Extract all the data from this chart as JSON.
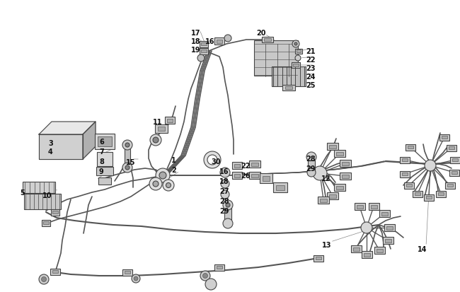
{
  "background_color": "#ffffff",
  "line_color": "#444444",
  "component_color": "#555555",
  "label_color": "#111111",
  "fig_width": 6.5,
  "fig_height": 4.13,
  "dpi": 100,
  "imgw": 650,
  "imgh": 413,
  "wire_lw": 1.2,
  "wire_color": "#555555",
  "comp_lw": 0.8,
  "comp_fc": "#d8d8d8",
  "comp_ec": "#444444",
  "label_fs": 7.0,
  "labels": [
    [
      "1",
      242,
      222
    ],
    [
      "2",
      242,
      236
    ],
    [
      "3",
      68,
      198
    ],
    [
      "4",
      68,
      210
    ],
    [
      "5",
      28,
      268
    ],
    [
      "6",
      140,
      196
    ],
    [
      "7",
      140,
      210
    ],
    [
      "8",
      140,
      224
    ],
    [
      "9",
      140,
      238
    ],
    [
      "10",
      60,
      272
    ],
    [
      "11",
      216,
      168
    ],
    [
      "12",
      454,
      248
    ],
    [
      "13",
      455,
      342
    ],
    [
      "14",
      590,
      348
    ],
    [
      "15",
      178,
      225
    ],
    [
      "16",
      290,
      54
    ],
    [
      "17",
      270,
      42
    ],
    [
      "18",
      270,
      54
    ],
    [
      "19",
      270,
      66
    ],
    [
      "20",
      362,
      42
    ],
    [
      "21",
      432,
      68
    ],
    [
      "22",
      432,
      80
    ],
    [
      "23",
      432,
      92
    ],
    [
      "24",
      432,
      104
    ],
    [
      "25",
      432,
      116
    ],
    [
      "16",
      310,
      238
    ],
    [
      "18",
      310,
      252
    ],
    [
      "22",
      340,
      230
    ],
    [
      "26",
      340,
      244
    ],
    [
      "27",
      310,
      266
    ],
    [
      "28",
      310,
      280
    ],
    [
      "29",
      310,
      294
    ],
    [
      "28",
      432,
      220
    ],
    [
      "29",
      432,
      234
    ],
    [
      "30",
      298,
      224
    ]
  ]
}
